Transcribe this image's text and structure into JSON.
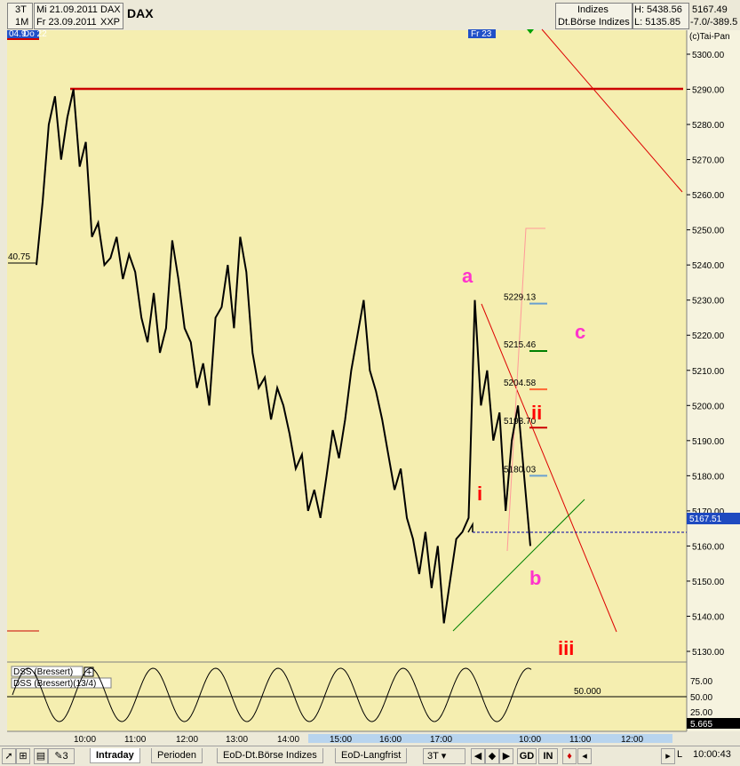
{
  "header": {
    "interval1": "3T",
    "interval2": "1M",
    "date1": "Mi 21.09.2011",
    "date2": "Fr 23.09.2011",
    "sym1": "DAX",
    "sym2": "XXP",
    "title": "DAX",
    "market1": "Indizes",
    "market2": "Dt.Börse Indizes",
    "high": "H: 5438.56",
    "low": "L: 5135.85",
    "last": "5167.49",
    "change": "-7.0/-389.5",
    "copyright": "(c)Tai-Pan",
    "marker_left": "04.9",
    "marker_left2": "Do 22",
    "marker_mid": "Fr 23"
  },
  "colors": {
    "background": "#f5eeb0",
    "price_line": "#000000",
    "resistance": "#cc0000",
    "wave_magenta": "#ff33cc",
    "wave_red": "#ff0000",
    "support": "#008000",
    "axis_bg": "#ece9d8",
    "last_marker_bg": "#1f4ac0"
  },
  "chart_data": {
    "type": "line",
    "symbol": "DAX",
    "ylim": [
      5125,
      5310
    ],
    "y_ticks": [
      "5300.00",
      "5290.00",
      "5280.00",
      "5270.00",
      "5260.00",
      "5250.00",
      "5240.00",
      "5230.00",
      "5220.00",
      "5210.00",
      "5200.00",
      "5190.00",
      "5180.00",
      "5170.00",
      "5160.00",
      "5150.00",
      "5140.00",
      "5130.00"
    ],
    "x_ticks": [
      "10:00",
      "11:00",
      "12:00",
      "13:00",
      "14:00",
      "15:00",
      "16:00",
      "17:00",
      "10:00",
      "11:00",
      "12:00"
    ],
    "last_value": "5167.51",
    "left_label": "40.75",
    "series": [
      {
        "values": [
          5240,
          5258,
          5280,
          5288,
          5270,
          5282,
          5290,
          5268,
          5275,
          5248,
          5252,
          5240,
          5242,
          5248,
          5236,
          5243,
          5238,
          5225,
          5218,
          5232,
          5215,
          5222,
          5247,
          5236,
          5222,
          5218,
          5205,
          5212,
          5200,
          5225,
          5228,
          5240,
          5222,
          5248,
          5238,
          5215,
          5205,
          5208,
          5196,
          5205,
          5200,
          5192,
          5182,
          5186,
          5170,
          5176,
          5168,
          5180,
          5193,
          5185,
          5196,
          5210,
          5220,
          5230,
          5210,
          5204,
          5196,
          5186,
          5176,
          5182,
          5168,
          5162,
          5152,
          5164,
          5148,
          5160,
          5138,
          5150,
          5162,
          5164,
          5168,
          5230,
          5200,
          5210,
          5190,
          5198,
          5170,
          5190,
          5200,
          5180,
          5160
        ]
      }
    ],
    "levels": [
      {
        "label": "5229.13",
        "value": 5229
      },
      {
        "label": "5215.46",
        "value": 5215.5
      },
      {
        "label": "5204.58",
        "value": 5204.6
      },
      {
        "label": "5193.70",
        "value": 5193.7
      },
      {
        "label": "5180.03",
        "value": 5180
      }
    ],
    "wave_labels": [
      {
        "text": "a",
        "value": 5235
      },
      {
        "text": "c",
        "value": 5219
      },
      {
        "text": "b",
        "value": 5149
      },
      {
        "text": "i",
        "value": 5173
      },
      {
        "text": "ii",
        "value": 5196
      },
      {
        "text": "iii",
        "value": 5129
      }
    ],
    "resistance_value": 5290,
    "dss": {
      "legend1": "DSS (Bressert)",
      "legend2": "DSS (Bressert)(13/4)",
      "level": "50.000",
      "y_ticks": [
        "75.00",
        "50.00",
        "25.00"
      ],
      "last_value": "5.665"
    }
  },
  "tabs": [
    "Intraday",
    "Perioden",
    "EoD-Dt.Börse Indizes",
    "EoD-Langfrist"
  ],
  "toolbar": {
    "interval": "3T",
    "gd": "GD",
    "in": "IN",
    "page": "3",
    "right_label": "L",
    "time": "10:00:43"
  }
}
